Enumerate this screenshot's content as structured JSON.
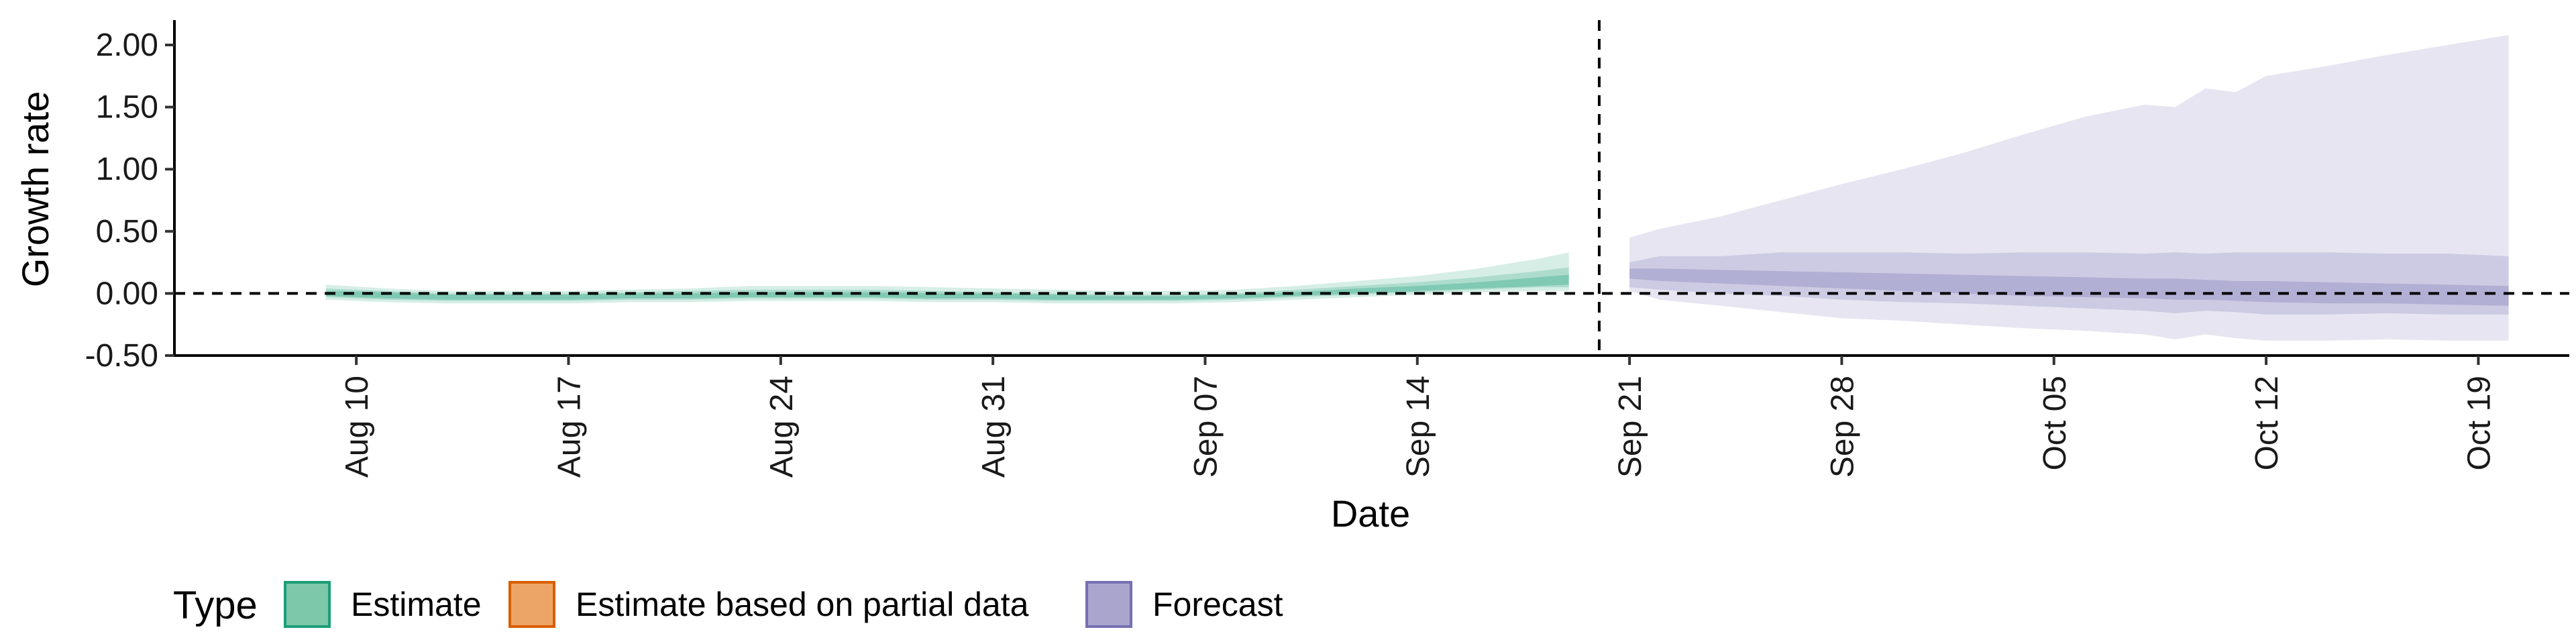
{
  "chart_data": {
    "type": "area",
    "xlabel": "Date",
    "ylabel": "Growth rate",
    "ylim": [
      -0.5,
      2.2
    ],
    "xlim": [
      "2020-08-04",
      "2020-10-22"
    ],
    "y_ticks": [
      "-0.50",
      "0.00",
      "0.50",
      "1.00",
      "1.50",
      "2.00"
    ],
    "y_tick_values": [
      -0.5,
      0.0,
      0.5,
      1.0,
      1.5,
      2.0
    ],
    "x_ticks": [
      "Aug 10",
      "Aug 17",
      "Aug 24",
      "Aug 31",
      "Sep 07",
      "Sep 14",
      "Sep 21",
      "Sep 28",
      "Oct 05",
      "Oct 12",
      "Oct 19"
    ],
    "x_tick_dates": [
      "2020-08-10",
      "2020-08-17",
      "2020-08-24",
      "2020-08-31",
      "2020-09-07",
      "2020-09-14",
      "2020-09-21",
      "2020-09-28",
      "2020-10-05",
      "2020-10-12",
      "2020-10-19"
    ],
    "forecast_start": "2020-09-20",
    "reference_y": 0,
    "grid": false,
    "legend": {
      "title": "Type",
      "placement": "bottom-left",
      "items": [
        {
          "label": "Estimate",
          "fill": "#7dc7aa",
          "stroke": "#1b9e77"
        },
        {
          "label": "Estimate based on partial data",
          "fill": "#eda467",
          "stroke": "#d95f02"
        },
        {
          "label": "Forecast",
          "fill": "#aaa5cd",
          "stroke": "#7570b3"
        }
      ]
    },
    "series": [
      {
        "name": "Estimate",
        "color": "#1b9e77",
        "dates": [
          "2020-08-09",
          "2020-08-11",
          "2020-08-13",
          "2020-08-15",
          "2020-08-17",
          "2020-08-19",
          "2020-08-21",
          "2020-08-23",
          "2020-08-25",
          "2020-08-27",
          "2020-08-29",
          "2020-08-31",
          "2020-09-02",
          "2020-09-04",
          "2020-09-06",
          "2020-09-08",
          "2020-09-10",
          "2020-09-12",
          "2020-09-14",
          "2020-09-16",
          "2020-09-18",
          "2020-09-19"
        ],
        "bands": [
          {
            "lower": [
              -0.05,
              -0.07,
              -0.08,
              -0.08,
              -0.08,
              -0.07,
              -0.07,
              -0.06,
              -0.06,
              -0.06,
              -0.07,
              -0.07,
              -0.08,
              -0.08,
              -0.08,
              -0.07,
              -0.05,
              -0.03,
              -0.01,
              0.01,
              0.02,
              0.02
            ],
            "upper": [
              0.07,
              0.04,
              0.02,
              0.02,
              0.02,
              0.03,
              0.04,
              0.06,
              0.06,
              0.06,
              0.05,
              0.04,
              0.03,
              0.02,
              0.02,
              0.03,
              0.06,
              0.1,
              0.14,
              0.2,
              0.28,
              0.33
            ]
          },
          {
            "lower": [
              -0.03,
              -0.05,
              -0.06,
              -0.06,
              -0.06,
              -0.05,
              -0.05,
              -0.04,
              -0.04,
              -0.04,
              -0.05,
              -0.05,
              -0.06,
              -0.06,
              -0.06,
              -0.05,
              -0.03,
              -0.01,
              0.01,
              0.03,
              0.05,
              0.05
            ],
            "upper": [
              0.04,
              0.02,
              0.0,
              0.0,
              0.0,
              0.01,
              0.02,
              0.03,
              0.03,
              0.03,
              0.02,
              0.01,
              0.0,
              -0.01,
              -0.01,
              0.0,
              0.03,
              0.06,
              0.09,
              0.13,
              0.18,
              0.21
            ]
          },
          {
            "lower": [
              -0.02,
              -0.04,
              -0.05,
              -0.05,
              -0.05,
              -0.04,
              -0.04,
              -0.03,
              -0.03,
              -0.03,
              -0.04,
              -0.04,
              -0.05,
              -0.05,
              -0.05,
              -0.04,
              -0.02,
              0.0,
              0.02,
              0.04,
              0.06,
              0.07
            ],
            "upper": [
              0.02,
              0.01,
              -0.01,
              -0.01,
              -0.01,
              0.0,
              0.0,
              0.01,
              0.01,
              0.01,
              0.0,
              0.0,
              -0.01,
              -0.02,
              -0.02,
              -0.01,
              0.01,
              0.04,
              0.06,
              0.09,
              0.13,
              0.15
            ]
          }
        ]
      },
      {
        "name": "Forecast",
        "color": "#7570b3",
        "dates": [
          "2020-09-21",
          "2020-09-22",
          "2020-09-24",
          "2020-09-26",
          "2020-09-28",
          "2020-09-30",
          "2020-10-02",
          "2020-10-04",
          "2020-10-06",
          "2020-10-08",
          "2020-10-09",
          "2020-10-10",
          "2020-10-11",
          "2020-10-12",
          "2020-10-14",
          "2020-10-16",
          "2020-10-18",
          "2020-10-20"
        ],
        "bands": [
          {
            "lower": [
              0.02,
              -0.05,
              -0.1,
              -0.15,
              -0.2,
              -0.22,
              -0.25,
              -0.28,
              -0.3,
              -0.33,
              -0.37,
              -0.33,
              -0.36,
              -0.38,
              -0.38,
              -0.37,
              -0.38,
              -0.38
            ],
            "upper": [
              0.45,
              0.52,
              0.62,
              0.75,
              0.88,
              1.0,
              1.13,
              1.28,
              1.42,
              1.52,
              1.5,
              1.65,
              1.62,
              1.75,
              1.83,
              1.92,
              2.0,
              2.08
            ]
          },
          {
            "lower": [
              0.05,
              0.03,
              0.0,
              -0.02,
              -0.05,
              -0.07,
              -0.08,
              -0.1,
              -0.12,
              -0.14,
              -0.16,
              -0.14,
              -0.15,
              -0.17,
              -0.17,
              -0.16,
              -0.17,
              -0.17
            ],
            "upper": [
              0.25,
              0.3,
              0.3,
              0.33,
              0.33,
              0.33,
              0.32,
              0.33,
              0.33,
              0.32,
              0.33,
              0.32,
              0.33,
              0.33,
              0.33,
              0.32,
              0.32,
              0.3
            ]
          },
          {
            "lower": [
              0.12,
              0.1,
              0.08,
              0.06,
              0.04,
              0.02,
              0.0,
              -0.02,
              -0.03,
              -0.04,
              -0.05,
              -0.05,
              -0.06,
              -0.07,
              -0.08,
              -0.08,
              -0.09,
              -0.1
            ],
            "upper": [
              0.2,
              0.2,
              0.19,
              0.18,
              0.17,
              0.16,
              0.15,
              0.14,
              0.13,
              0.12,
              0.12,
              0.11,
              0.1,
              0.1,
              0.09,
              0.08,
              0.07,
              0.06
            ]
          }
        ]
      }
    ]
  }
}
